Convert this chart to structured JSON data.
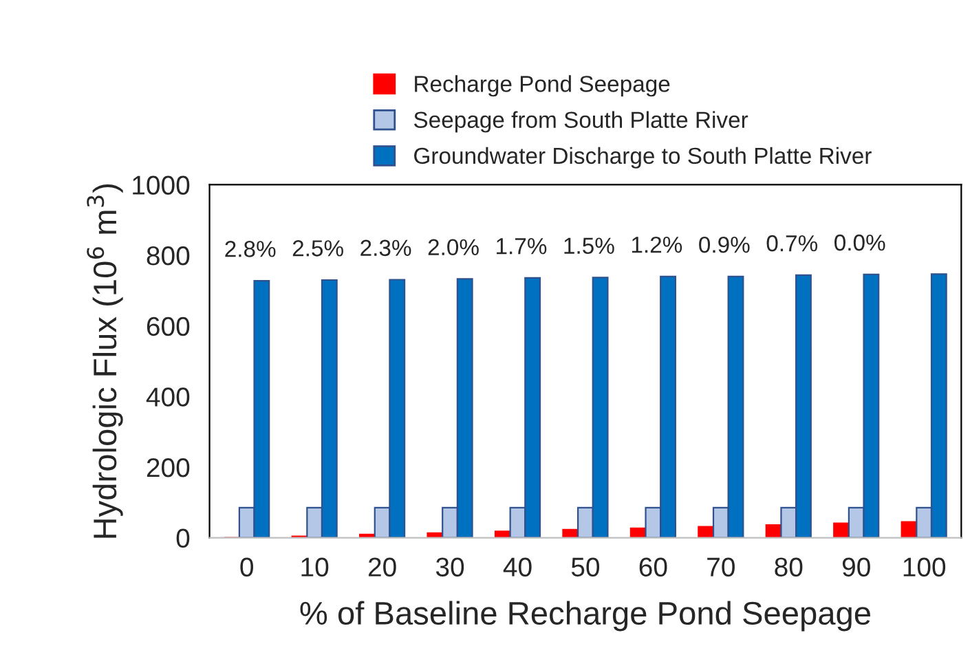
{
  "chart_data": {
    "type": "bar",
    "xlabel": "% of Baseline Recharge Pond Seepage",
    "ylabel": "Hydrologic Flux (10$^{6}$ m$^{3}$)",
    "categories": [
      "0",
      "10",
      "20",
      "30",
      "40",
      "50",
      "60",
      "70",
      "80",
      "90",
      "100"
    ],
    "series": [
      {
        "name": "Recharge Pond Seepage",
        "color": "#ff0000",
        "values": [
          0,
          4,
          9,
          13,
          18,
          23,
          27,
          31,
          36,
          41,
          45
        ]
      },
      {
        "name": "Seepage from South Platte River",
        "color": "#b4c7e7",
        "values": [
          85,
          85,
          85,
          85,
          85,
          85,
          85,
          85,
          85,
          85,
          85
        ]
      },
      {
        "name": "Groundwater Discharge to South Platte River",
        "color": "#0070c0",
        "values": [
          728,
          730,
          731,
          733,
          736,
          737,
          740,
          740,
          744,
          746,
          747
        ]
      }
    ],
    "ylim": [
      0,
      1000
    ],
    "yticks": [
      0,
      200,
      400,
      600,
      800,
      1000
    ],
    "grid": false,
    "legend": "top",
    "annotations": [
      "2.8%",
      "2.5%",
      "2.3%",
      "2.0%",
      "1.7%",
      "1.5%",
      "1.2%",
      "0.9%",
      "0.7%",
      "0.0%"
    ]
  }
}
